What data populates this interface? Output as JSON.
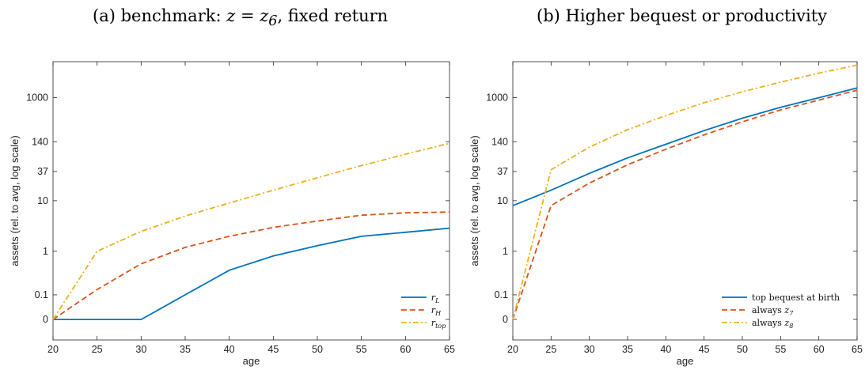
{
  "chart_data": [
    {
      "id": "a",
      "type": "line",
      "title_prefix": "(a) benchmark: ",
      "title_math": "z = z",
      "title_sub": "6",
      "title_suffix": ", fixed return",
      "xlabel": "age",
      "ylabel": "assets (rel. to avg, log scale)",
      "x": [
        20,
        25,
        30,
        35,
        40,
        45,
        50,
        55,
        60,
        65
      ],
      "xticks": [
        "20",
        "25",
        "30",
        "35",
        "40",
        "45",
        "50",
        "55",
        "60",
        "65"
      ],
      "yticks": [
        "0",
        "0.1",
        "1",
        "10",
        "37",
        "140",
        "1000"
      ],
      "ylim": [
        -0.03,
        5000
      ],
      "scale": "log (shifted)",
      "legend_position": "bottom-right",
      "series": [
        {
          "name": "r",
          "name_sub": "L",
          "color": "#0072BD",
          "dash": "",
          "values": [
            0,
            0,
            0,
            0.1,
            0.4,
            0.8,
            1.3,
            2.0,
            2.4,
            2.9
          ]
        },
        {
          "name": "r",
          "name_sub": "H",
          "color": "#D95319",
          "dash": "7,4",
          "values": [
            0,
            0.14,
            0.55,
            1.2,
            2.0,
            3.0,
            4.0,
            5.2,
            5.8,
            6.0
          ]
        },
        {
          "name": "r",
          "name_sub": "top",
          "color": "#EDB120",
          "dash": "7,3,2,3",
          "values": [
            0,
            1.0,
            2.5,
            5.0,
            9.0,
            16,
            28,
            48,
            80,
            130
          ]
        }
      ]
    },
    {
      "id": "b",
      "type": "line",
      "title": "(b) Higher bequest or productivity",
      "xlabel": "age",
      "ylabel": "assets (rel. to avg, log scale)",
      "x": [
        20,
        25,
        30,
        35,
        40,
        45,
        50,
        55,
        60,
        65
      ],
      "xticks": [
        "20",
        "25",
        "30",
        "35",
        "40",
        "45",
        "50",
        "55",
        "60",
        "65"
      ],
      "yticks": [
        "0",
        "0.1",
        "1",
        "10",
        "37",
        "140",
        "1000"
      ],
      "ylim": [
        -0.03,
        5000
      ],
      "scale": "log (shifted)",
      "legend_position": "bottom-right",
      "series": [
        {
          "name": "top bequest at birth",
          "color": "#0072BD",
          "dash": "",
          "values": [
            8,
            16,
            34,
            68,
            125,
            230,
            400,
            650,
            1000,
            1550
          ]
        },
        {
          "name": "always z",
          "name_sub": "7",
          "color": "#D95319",
          "dash": "7,4",
          "values": [
            0,
            8,
            22,
            50,
            100,
            190,
            340,
            580,
            900,
            1400
          ]
        },
        {
          "name": "always z",
          "name_sub": "8",
          "color": "#EDB120",
          "dash": "7,3,2,3",
          "values": [
            0,
            40,
            110,
            240,
            450,
            800,
            1300,
            2000,
            3000,
            4300
          ]
        }
      ]
    }
  ]
}
